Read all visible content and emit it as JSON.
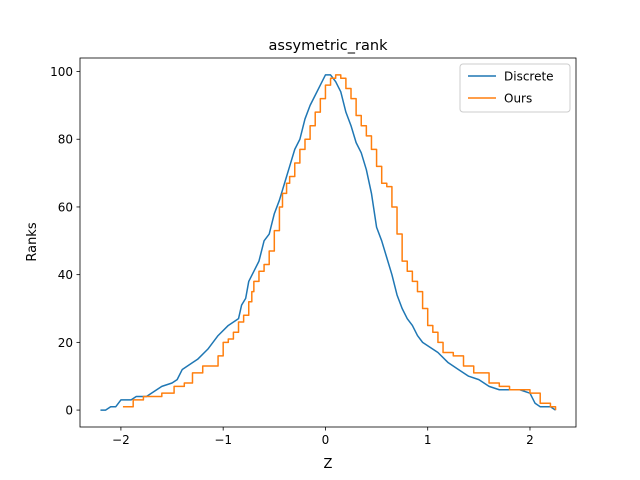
{
  "chart_data": {
    "type": "line",
    "title": "assymetric_rank",
    "xlabel": "Z",
    "ylabel": "Ranks",
    "xlim": [
      -2.4,
      2.45
    ],
    "ylim": [
      -5,
      104
    ],
    "xticks": [
      -2,
      -1,
      0,
      1,
      2
    ],
    "xtick_labels": [
      "−2",
      "−1",
      "0",
      "1",
      "2"
    ],
    "yticks": [
      0,
      20,
      40,
      60,
      80,
      100
    ],
    "ytick_labels": [
      "0",
      "20",
      "40",
      "60",
      "80",
      "100"
    ],
    "grid": false,
    "legend_position": "top-right",
    "series": [
      {
        "name": "Discrete",
        "color": "#1f77b4",
        "step": false,
        "points": [
          [
            -2.2,
            0
          ],
          [
            -2.15,
            0
          ],
          [
            -2.1,
            1
          ],
          [
            -2.05,
            1
          ],
          [
            -2.0,
            3
          ],
          [
            -1.9,
            3
          ],
          [
            -1.85,
            4
          ],
          [
            -1.75,
            4
          ],
          [
            -1.7,
            5
          ],
          [
            -1.6,
            7
          ],
          [
            -1.5,
            8
          ],
          [
            -1.45,
            9
          ],
          [
            -1.4,
            12
          ],
          [
            -1.3,
            14
          ],
          [
            -1.25,
            15
          ],
          [
            -1.15,
            18
          ],
          [
            -1.05,
            22
          ],
          [
            -0.95,
            25
          ],
          [
            -0.85,
            27
          ],
          [
            -0.82,
            31
          ],
          [
            -0.78,
            33
          ],
          [
            -0.75,
            38
          ],
          [
            -0.7,
            41
          ],
          [
            -0.65,
            44
          ],
          [
            -0.6,
            50
          ],
          [
            -0.55,
            52
          ],
          [
            -0.5,
            58
          ],
          [
            -0.45,
            62
          ],
          [
            -0.4,
            67
          ],
          [
            -0.35,
            72
          ],
          [
            -0.3,
            77
          ],
          [
            -0.25,
            80
          ],
          [
            -0.2,
            86
          ],
          [
            -0.15,
            90
          ],
          [
            -0.1,
            93
          ],
          [
            -0.05,
            96
          ],
          [
            0.0,
            99
          ],
          [
            0.05,
            99
          ],
          [
            0.1,
            97
          ],
          [
            0.15,
            94
          ],
          [
            0.2,
            88
          ],
          [
            0.25,
            84
          ],
          [
            0.3,
            79
          ],
          [
            0.35,
            76
          ],
          [
            0.4,
            71
          ],
          [
            0.45,
            64
          ],
          [
            0.5,
            54
          ],
          [
            0.55,
            50
          ],
          [
            0.6,
            45
          ],
          [
            0.65,
            40
          ],
          [
            0.7,
            34
          ],
          [
            0.75,
            30
          ],
          [
            0.8,
            27
          ],
          [
            0.85,
            25
          ],
          [
            0.9,
            22
          ],
          [
            0.95,
            20
          ],
          [
            1.0,
            19
          ],
          [
            1.1,
            17
          ],
          [
            1.2,
            14
          ],
          [
            1.3,
            12
          ],
          [
            1.4,
            10
          ],
          [
            1.5,
            9
          ],
          [
            1.6,
            7
          ],
          [
            1.7,
            6
          ],
          [
            1.9,
            6
          ],
          [
            2.0,
            5
          ],
          [
            2.05,
            2
          ],
          [
            2.1,
            1
          ],
          [
            2.2,
            1
          ],
          [
            2.25,
            0
          ]
        ]
      },
      {
        "name": "Ours",
        "color": "#ff7f0e",
        "step": true,
        "points": [
          [
            -1.98,
            1
          ],
          [
            -1.88,
            3
          ],
          [
            -1.78,
            4
          ],
          [
            -1.6,
            5
          ],
          [
            -1.48,
            7
          ],
          [
            -1.38,
            8
          ],
          [
            -1.3,
            11
          ],
          [
            -1.2,
            13
          ],
          [
            -1.05,
            16
          ],
          [
            -1.0,
            20
          ],
          [
            -0.95,
            21
          ],
          [
            -0.9,
            23
          ],
          [
            -0.85,
            26
          ],
          [
            -0.8,
            28
          ],
          [
            -0.75,
            32
          ],
          [
            -0.72,
            35
          ],
          [
            -0.7,
            38
          ],
          [
            -0.65,
            41
          ],
          [
            -0.6,
            43
          ],
          [
            -0.55,
            47
          ],
          [
            -0.5,
            53
          ],
          [
            -0.45,
            60
          ],
          [
            -0.42,
            64
          ],
          [
            -0.38,
            67
          ],
          [
            -0.35,
            69
          ],
          [
            -0.3,
            73
          ],
          [
            -0.25,
            77
          ],
          [
            -0.2,
            80
          ],
          [
            -0.15,
            84
          ],
          [
            -0.1,
            88
          ],
          [
            -0.05,
            92
          ],
          [
            0.0,
            96
          ],
          [
            0.05,
            98
          ],
          [
            0.1,
            99
          ],
          [
            0.15,
            98
          ],
          [
            0.2,
            95
          ],
          [
            0.25,
            92
          ],
          [
            0.3,
            87
          ],
          [
            0.35,
            84
          ],
          [
            0.4,
            81
          ],
          [
            0.45,
            77
          ],
          [
            0.5,
            72
          ],
          [
            0.55,
            67
          ],
          [
            0.6,
            66
          ],
          [
            0.65,
            60
          ],
          [
            0.7,
            52
          ],
          [
            0.75,
            44
          ],
          [
            0.8,
            41
          ],
          [
            0.85,
            38
          ],
          [
            0.9,
            35
          ],
          [
            0.95,
            30
          ],
          [
            1.0,
            25
          ],
          [
            1.05,
            23
          ],
          [
            1.1,
            20
          ],
          [
            1.15,
            17
          ],
          [
            1.25,
            16
          ],
          [
            1.35,
            13
          ],
          [
            1.45,
            11
          ],
          [
            1.6,
            8
          ],
          [
            1.7,
            7
          ],
          [
            1.8,
            6
          ],
          [
            2.0,
            5
          ],
          [
            2.1,
            2
          ],
          [
            2.2,
            1
          ],
          [
            2.25,
            0
          ]
        ]
      }
    ]
  }
}
